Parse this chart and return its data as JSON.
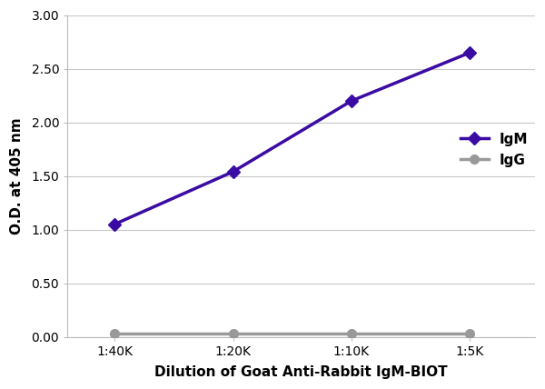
{
  "x_labels": [
    "1:40K",
    "1:20K",
    "1:10K",
    "1:5K"
  ],
  "x_values": [
    1,
    2,
    3,
    4
  ],
  "IgM_values": [
    1.05,
    1.54,
    2.2,
    2.65
  ],
  "IgG_values": [
    0.03,
    0.03,
    0.03,
    0.03
  ],
  "IgM_color": "#3a0ca3",
  "IgG_color": "#999999",
  "xlabel": "Dilution of Goat Anti-Rabbit IgM-BIOT",
  "ylabel": "O.D. at 405 nm",
  "ylim": [
    0.0,
    3.0
  ],
  "yticks": [
    0.0,
    0.5,
    1.0,
    1.5,
    2.0,
    2.5,
    3.0
  ],
  "legend_labels": [
    "IgM",
    "IgG"
  ],
  "background_color": "#ffffff",
  "grid_color": "#c8c8c8",
  "axis_label_fontsize": 11,
  "tick_fontsize": 10,
  "legend_fontsize": 11,
  "line_width": 2.5,
  "marker_size": 7,
  "IgG_marker_size": 7
}
